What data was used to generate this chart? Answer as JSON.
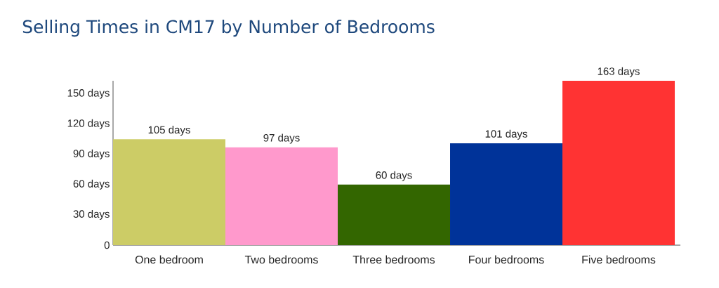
{
  "chart_data": {
    "type": "bar",
    "title": "Selling Times in CM17 by Number of Bedrooms",
    "categories": [
      "One bedroom",
      "Two bedrooms",
      "Three bedrooms",
      "Four bedrooms",
      "Five bedrooms"
    ],
    "values": [
      105,
      97,
      60,
      101,
      163
    ],
    "colors": [
      "#cccc66",
      "#ff99cc",
      "#336600",
      "#003399",
      "#ff3333"
    ],
    "value_labels": [
      "105 days",
      "97 days",
      "60 days",
      "101 days",
      "163 days"
    ],
    "ylim": [
      0,
      163
    ],
    "yticks": [
      0,
      {
        "value": 30,
        "label": "30 days"
      },
      {
        "value": 60,
        "label": "60 days"
      },
      {
        "value": 90,
        "label": "90 days"
      },
      {
        "value": 120,
        "label": "120 days"
      },
      {
        "value": 150,
        "label": "150 days"
      }
    ]
  }
}
